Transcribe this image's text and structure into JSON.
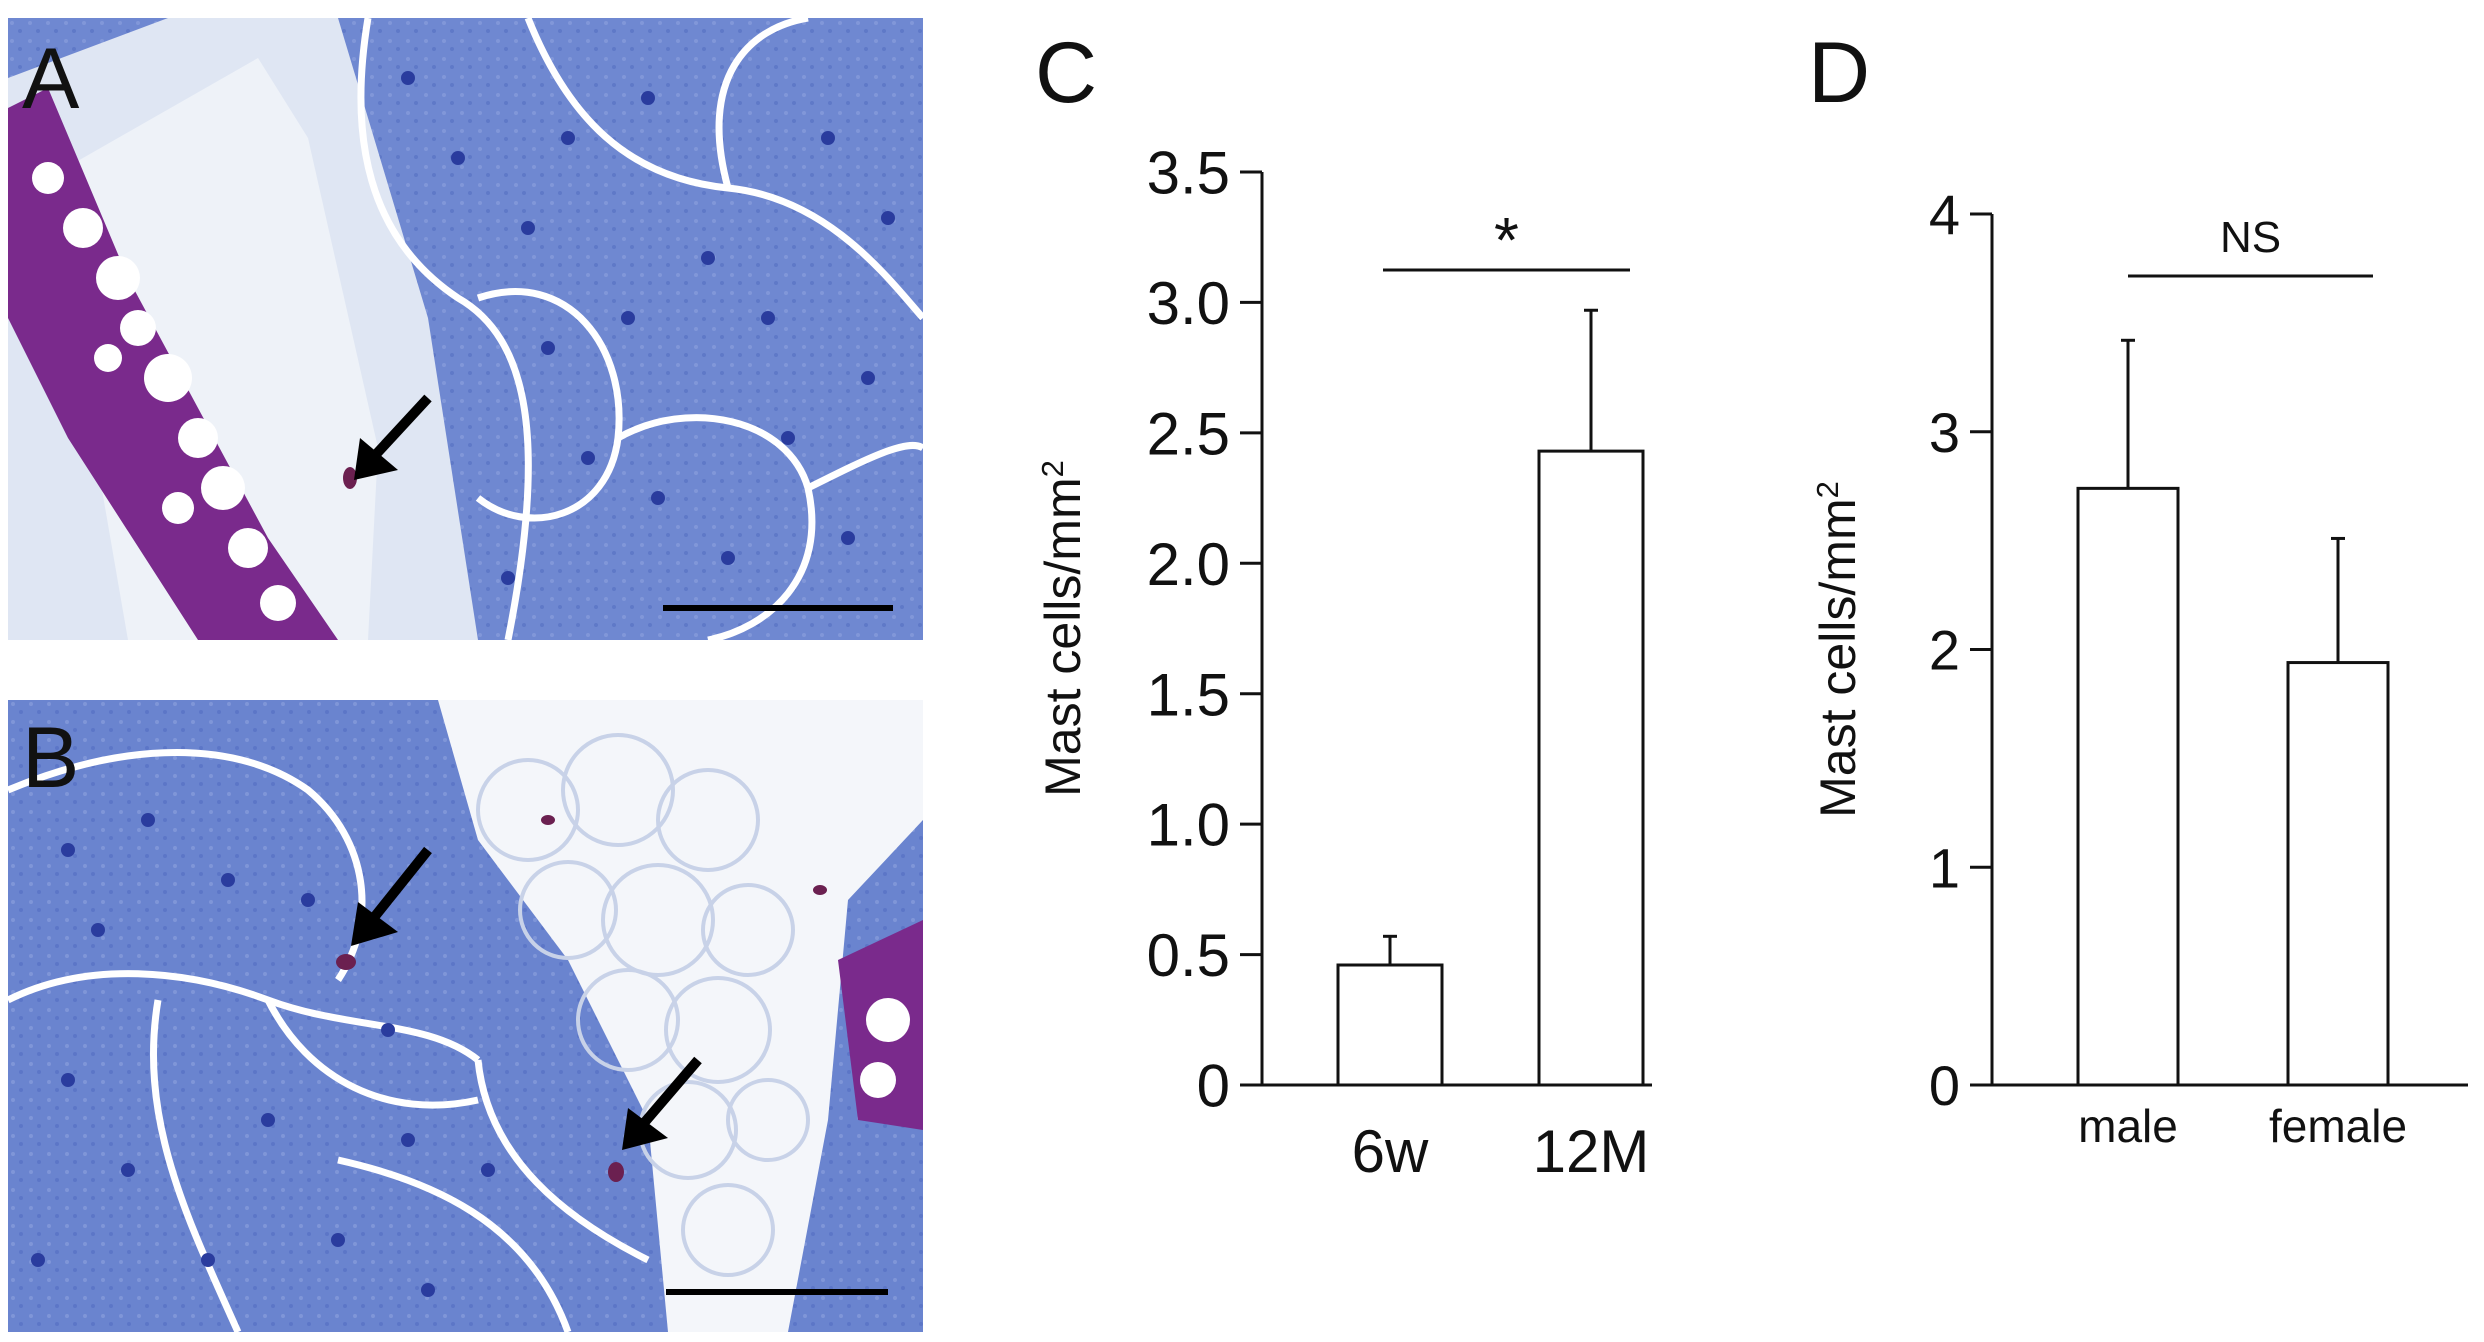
{
  "panels": {
    "a": {
      "label": "A"
    },
    "b": {
      "label": "B"
    },
    "c": {
      "label": "C"
    },
    "d": {
      "label": "D"
    }
  },
  "micrograph_colors": {
    "tissue_blue": "#5c77c9",
    "tissue_light": "#aab9e6",
    "nucleus": "#2a3c9e",
    "cartilage_purple": "#7a2a8c",
    "mast_cell": "#6b2050",
    "background": "#ffffff"
  },
  "chart_data": [
    {
      "type": "bar",
      "panel": "C",
      "categories": [
        "6w",
        "12M"
      ],
      "values": [
        0.46,
        2.43
      ],
      "errors": [
        0.11,
        0.54
      ],
      "ylabel": "Mast cells/mm²",
      "ylim": [
        0,
        3.5
      ],
      "yticks": [
        "0",
        "0.5",
        "1.0",
        "1.5",
        "2.0",
        "2.5",
        "3.0",
        "3.5"
      ],
      "significance": "*",
      "bar_fill": "#ffffff",
      "grid": false
    },
    {
      "type": "bar",
      "panel": "D",
      "categories": [
        "male",
        "female"
      ],
      "values": [
        2.74,
        1.94
      ],
      "errors": [
        0.68,
        0.57
      ],
      "ylabel": "Mast cells/mm²",
      "ylim": [
        0,
        4
      ],
      "yticks": [
        "0",
        "1",
        "2",
        "3",
        "4"
      ],
      "significance": "NS",
      "bar_fill": "#ffffff",
      "grid": false
    }
  ]
}
